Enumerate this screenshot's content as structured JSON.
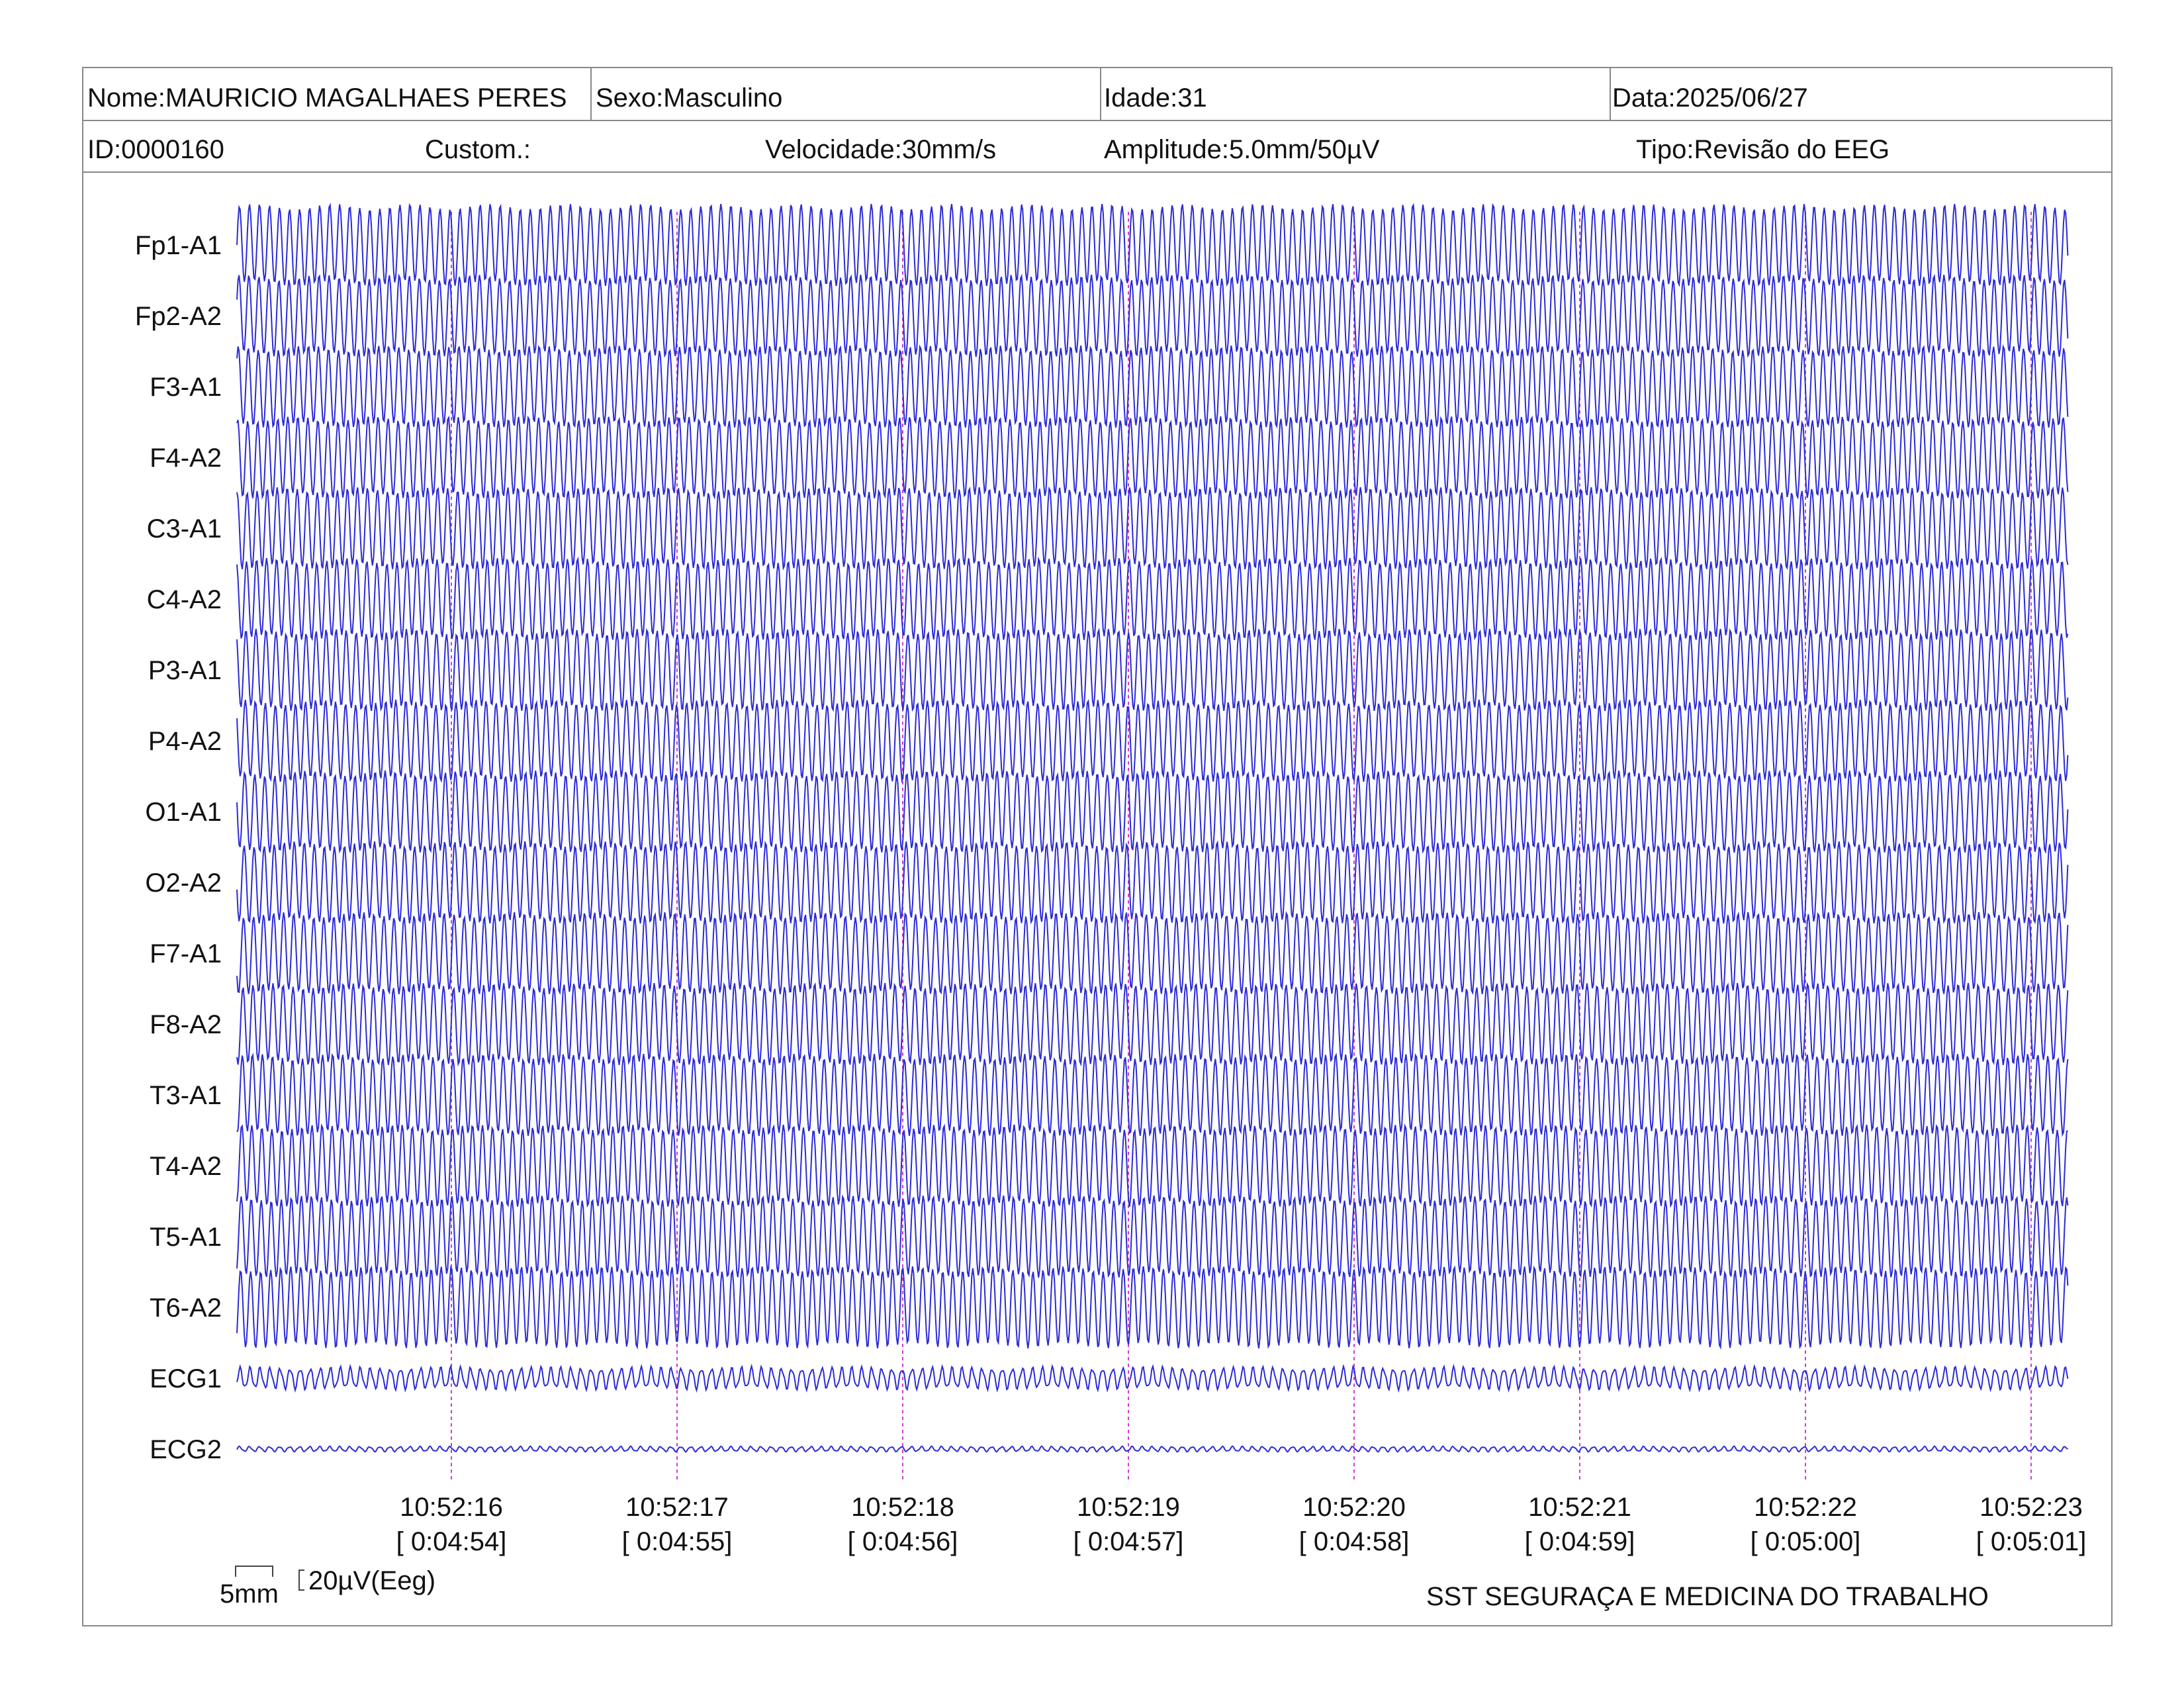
{
  "header": {
    "nome": "Nome:MAURICIO MAGALHAES PERES",
    "sexo": "Sexo:Masculino",
    "idade": "Idade:31",
    "data": "Data:2025/06/27",
    "id": "ID:0000160",
    "custom": "Custom.:",
    "velocidade": "Velocidade:30mm/s",
    "amplitude": "Amplitude:5.0mm/50µV",
    "tipo": "Tipo:Revisão do EEG"
  },
  "scale": {
    "time": "5mm",
    "amp": "20µV(Eeg)"
  },
  "footer": {
    "org": "SST SEGURAÇA E MEDICINA DO TRABALHO"
  },
  "colors": {
    "trace": "#2b2bd6",
    "marker": "#d23ad2",
    "border": "#888888"
  },
  "chart_data": {
    "type": "line",
    "title": "",
    "channels": [
      {
        "name": "Fp1-A1",
        "kind": "eeg",
        "amplitude": 1.0
      },
      {
        "name": "Fp2-A2",
        "kind": "eeg",
        "amplitude": 1.0
      },
      {
        "name": "F3-A1",
        "kind": "eeg",
        "amplitude": 1.0
      },
      {
        "name": "F4-A2",
        "kind": "eeg",
        "amplitude": 1.0
      },
      {
        "name": "C3-A1",
        "kind": "eeg",
        "amplitude": 1.0
      },
      {
        "name": "C4-A2",
        "kind": "eeg",
        "amplitude": 1.0
      },
      {
        "name": "P3-A1",
        "kind": "eeg",
        "amplitude": 1.0
      },
      {
        "name": "P4-A2",
        "kind": "eeg",
        "amplitude": 1.0
      },
      {
        "name": "O1-A1",
        "kind": "eeg",
        "amplitude": 1.0
      },
      {
        "name": "O2-A2",
        "kind": "eeg",
        "amplitude": 1.0
      },
      {
        "name": "F7-A1",
        "kind": "eeg",
        "amplitude": 1.0
      },
      {
        "name": "F8-A2",
        "kind": "eeg",
        "amplitude": 1.0
      },
      {
        "name": "T3-A1",
        "kind": "eeg",
        "amplitude": 1.0
      },
      {
        "name": "T4-A2",
        "kind": "eeg",
        "amplitude": 1.0
      },
      {
        "name": "T5-A1",
        "kind": "eeg",
        "amplitude": 1.0
      },
      {
        "name": "T6-A2",
        "kind": "eeg",
        "amplitude": 1.0
      },
      {
        "name": "ECG1",
        "kind": "ecg",
        "amplitude": 0.25
      },
      {
        "name": "ECG2",
        "kind": "ecg",
        "amplitude": 0.06
      }
    ],
    "time_markers": [
      {
        "clock": "10:52:16",
        "elapsed": "[ 0:04:54]"
      },
      {
        "clock": "10:52:17",
        "elapsed": "[ 0:04:55]"
      },
      {
        "clock": "10:52:18",
        "elapsed": "[ 0:04:56]"
      },
      {
        "clock": "10:52:19",
        "elapsed": "[ 0:04:57]"
      },
      {
        "clock": "10:52:20",
        "elapsed": "[ 0:04:58]"
      },
      {
        "clock": "10:52:21",
        "elapsed": "[ 0:04:59]"
      },
      {
        "clock": "10:52:22",
        "elapsed": "[ 0:05:00]"
      },
      {
        "clock": "10:52:23",
        "elapsed": "[ 0:05:01]"
      }
    ],
    "oscillation_cycles_per_second": 22.5,
    "grid": false
  }
}
